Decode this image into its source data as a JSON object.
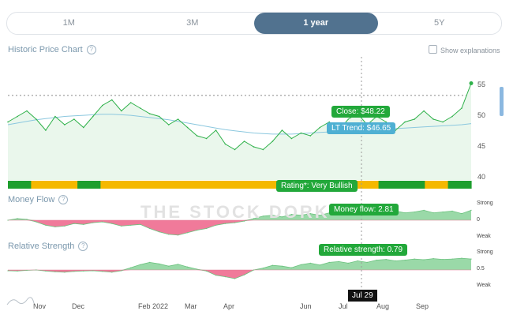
{
  "tabs": [
    {
      "label": "1M"
    },
    {
      "label": "3M"
    },
    {
      "label": "1 year"
    },
    {
      "label": "5Y"
    }
  ],
  "active_tab": "1 year",
  "price_chart": {
    "title": "Historic Price Chart",
    "show_explanations": "Show explanations",
    "y_ticks": [
      "55",
      "50",
      "45",
      "40"
    ],
    "close_label": "Close: $48.22",
    "trend_label": "LT Trend: $46.65",
    "rating_label": "Rating*: Very Bullish"
  },
  "money_flow": {
    "title": "Money Flow",
    "label": "Money flow: 2.81",
    "ticks": [
      "Strong",
      "0",
      "Weak"
    ]
  },
  "relative_strength": {
    "title": "Relative Strength",
    "label": "Relative strength: 0.79",
    "ticks": [
      "Strong",
      "0.5",
      "Weak"
    ]
  },
  "x_axis": [
    "Nov",
    "Dec",
    "Feb 2022",
    "Mar",
    "Apr",
    "Jun",
    "Jul",
    "Aug",
    "Sep"
  ],
  "hover_date": "Jul 29",
  "watermark": "THE STOCK DORK",
  "colors": {
    "price_line": "#2fb14a",
    "trend_line": "#8cc8df",
    "rating_green": "#1e9e2e",
    "rating_yellow": "#f5b800",
    "negative": "#f07a9a",
    "positive": "#9ad9a8",
    "accent": "#51728f"
  },
  "chart_data": [
    {
      "type": "line",
      "title": "Historic Price Chart",
      "ylim": [
        38,
        57
      ],
      "series": [
        {
          "name": "Close",
          "values": [
            48.5,
            49.5,
            50.5,
            49.0,
            47.0,
            49.5,
            48.0,
            49.0,
            47.5,
            49.5,
            51.5,
            52.5,
            50.5,
            52.0,
            51.0,
            50.0,
            49.5,
            48.0,
            49.0,
            47.5,
            46.0,
            45.5,
            47.0,
            44.5,
            43.5,
            45.0,
            44.0,
            43.5,
            45.0,
            47.0,
            45.5,
            46.5,
            46.0,
            47.5,
            48.5,
            47.0,
            49.0,
            50.0,
            48.0,
            49.5,
            48.5,
            47.0,
            48.5,
            49.0,
            50.5,
            49.0,
            48.5,
            49.5,
            51.0,
            55.5
          ]
        },
        {
          "name": "LT Trend",
          "values": [
            48.0,
            48.3,
            48.6,
            48.9,
            49.1,
            49.3,
            49.5,
            49.6,
            49.7,
            49.8,
            49.9,
            49.9,
            49.8,
            49.7,
            49.5,
            49.3,
            49.1,
            48.9,
            48.6,
            48.3,
            48.0,
            47.7,
            47.4,
            47.1,
            46.9,
            46.7,
            46.5,
            46.4,
            46.3,
            46.3,
            46.3,
            46.4,
            46.5,
            46.6,
            46.7,
            46.8,
            46.9,
            47.0,
            47.1,
            47.2,
            47.2,
            47.3,
            47.4,
            47.5,
            47.6,
            47.7,
            47.8,
            47.9,
            48.0,
            48.2
          ]
        }
      ],
      "rating_segments": [
        "green",
        "yellow",
        "yellow",
        "green",
        "yellow",
        "yellow",
        "yellow",
        "yellow",
        "yellow",
        "yellow",
        "yellow",
        "yellow",
        "green",
        "green",
        "green",
        "yellow",
        "green",
        "green",
        "yellow",
        "green"
      ]
    },
    {
      "type": "area",
      "title": "Money Flow",
      "ylim": [
        -1,
        1
      ],
      "series": [
        {
          "values": [
            0.0,
            0.1,
            0.05,
            -0.1,
            -0.3,
            -0.4,
            -0.35,
            -0.2,
            -0.25,
            -0.15,
            -0.1,
            -0.2,
            -0.35,
            -0.3,
            -0.25,
            -0.5,
            -0.7,
            -0.85,
            -0.9,
            -0.75,
            -0.6,
            -0.5,
            -0.3,
            -0.2,
            -0.15,
            -0.05,
            0.1,
            0.25,
            0.3,
            0.2,
            0.35,
            0.3,
            0.4,
            0.3,
            0.45,
            0.5,
            0.4,
            0.6,
            0.5,
            0.35,
            0.5,
            0.55,
            0.45,
            0.5,
            0.6,
            0.45,
            0.5,
            0.55,
            0.4,
            0.6
          ]
        }
      ]
    },
    {
      "type": "area",
      "title": "Relative Strength",
      "ylim": [
        0,
        1
      ],
      "series": [
        {
          "values": [
            0.48,
            0.47,
            0.49,
            0.5,
            0.47,
            0.45,
            0.44,
            0.46,
            0.47,
            0.48,
            0.46,
            0.44,
            0.48,
            0.56,
            0.64,
            0.7,
            0.66,
            0.6,
            0.65,
            0.58,
            0.52,
            0.47,
            0.36,
            0.32,
            0.27,
            0.37,
            0.5,
            0.55,
            0.62,
            0.6,
            0.56,
            0.64,
            0.68,
            0.63,
            0.7,
            0.72,
            0.68,
            0.74,
            0.7,
            0.76,
            0.78,
            0.74,
            0.76,
            0.79,
            0.77,
            0.8,
            0.78,
            0.79,
            0.81,
            0.79
          ]
        }
      ]
    }
  ]
}
